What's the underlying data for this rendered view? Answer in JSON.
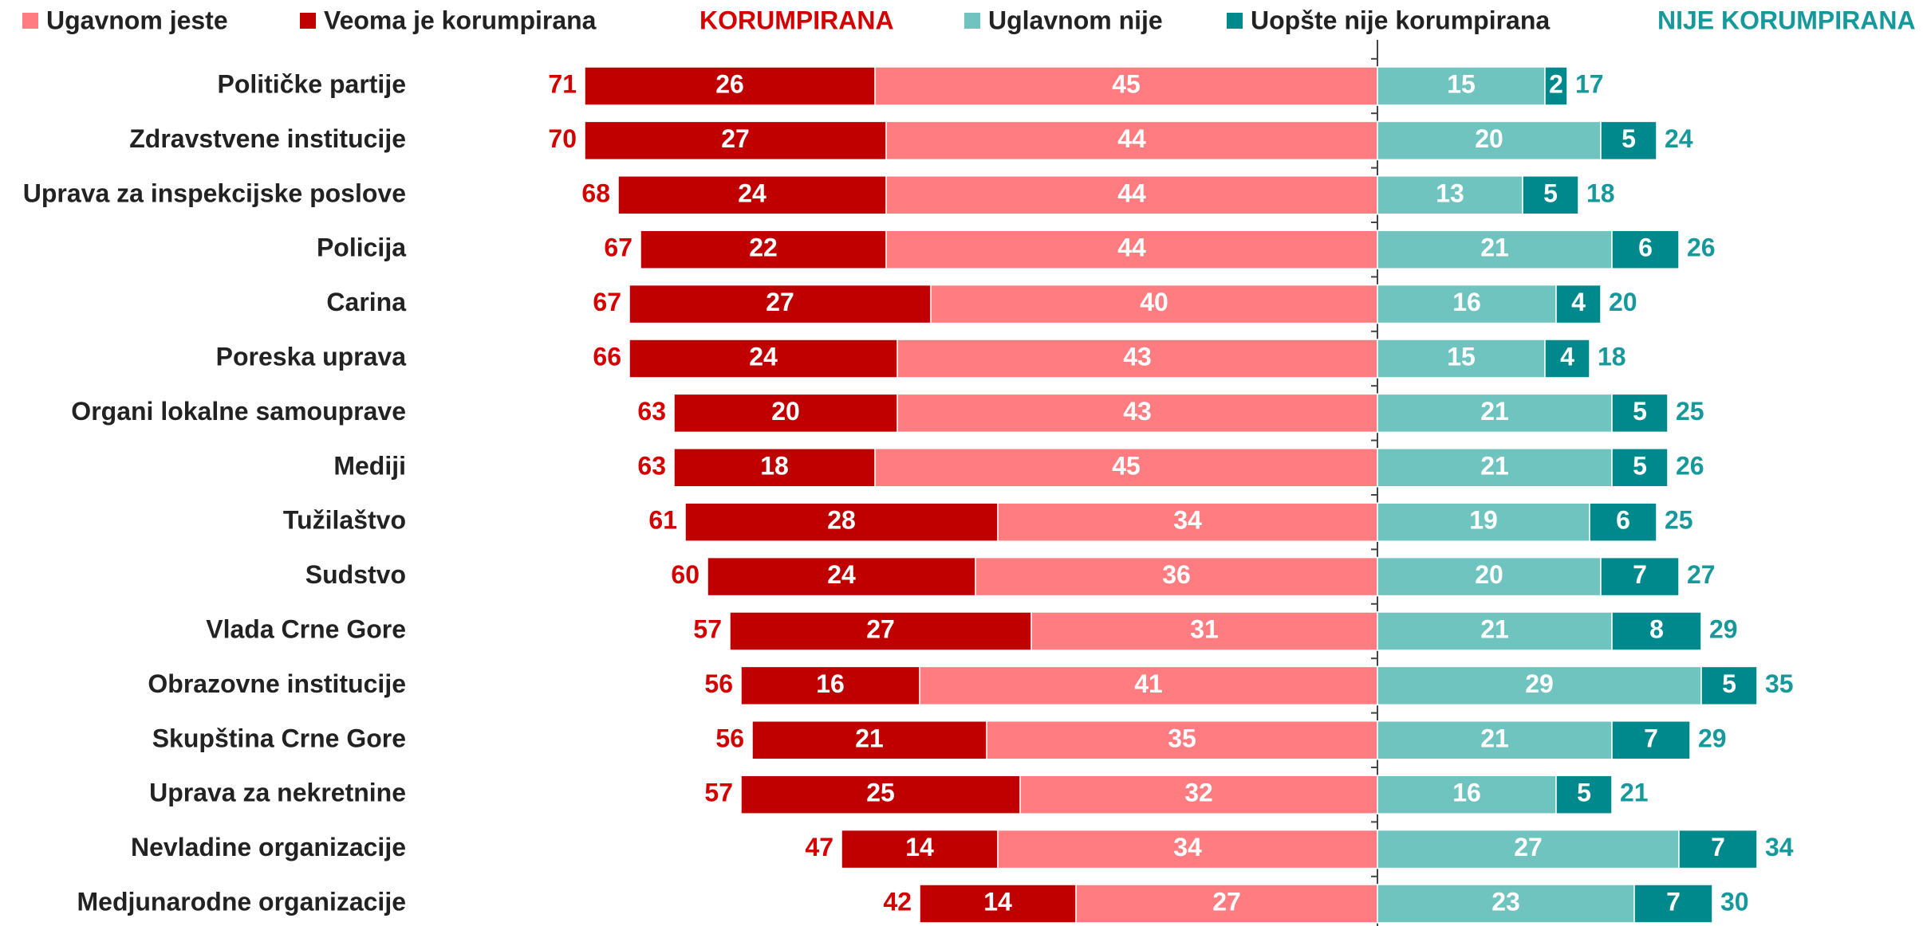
{
  "chart_data": {
    "type": "diverging-bar",
    "categories": [
      "Političke partije",
      "Zdravstvene institucije",
      "Uprava za inspekcijske poslove",
      "Policija",
      "Carina",
      "Poreska uprava",
      "Organi lokalne samouprave",
      "Mediji",
      "Tužilaštvo",
      "Sudstvo",
      "Vlada Crne Gore",
      "Obrazovne institucije",
      "Skupština Crne Gore",
      "Uprava za nekretnine",
      "Nevladine organizacije",
      "Medjunarodne organizacije"
    ],
    "series": [
      {
        "name": "Ugavnom jeste",
        "color": "#ff7c80",
        "values": [
          45,
          44,
          44,
          44,
          40,
          43,
          43,
          45,
          34,
          36,
          31,
          41,
          35,
          32,
          34,
          27
        ]
      },
      {
        "name": "Veoma je korumpirana",
        "color": "#c00000",
        "values": [
          26,
          27,
          24,
          22,
          27,
          24,
          20,
          18,
          28,
          24,
          27,
          16,
          21,
          25,
          14,
          14
        ]
      },
      {
        "name": "Uglavnom nije",
        "color": "#70c4c0",
        "values": [
          15,
          20,
          13,
          21,
          16,
          15,
          21,
          21,
          19,
          20,
          21,
          29,
          21,
          16,
          27,
          23
        ]
      },
      {
        "name": "Uopšte nije korumpirana",
        "color": "#00898d",
        "values": [
          2,
          5,
          5,
          6,
          4,
          4,
          5,
          5,
          6,
          7,
          8,
          5,
          7,
          5,
          7,
          7
        ]
      }
    ],
    "totals": [
      {
        "name": "KORUMPIRANA",
        "color": "#d40000",
        "values": [
          71,
          70,
          68,
          67,
          67,
          66,
          63,
          63,
          61,
          60,
          57,
          56,
          56,
          57,
          47,
          42
        ]
      },
      {
        "name": "NIJE KORUMPIRANA",
        "color": "#17999b",
        "values": [
          17,
          24,
          18,
          26,
          20,
          18,
          25,
          26,
          25,
          27,
          29,
          35,
          29,
          21,
          34,
          30
        ]
      }
    ]
  }
}
